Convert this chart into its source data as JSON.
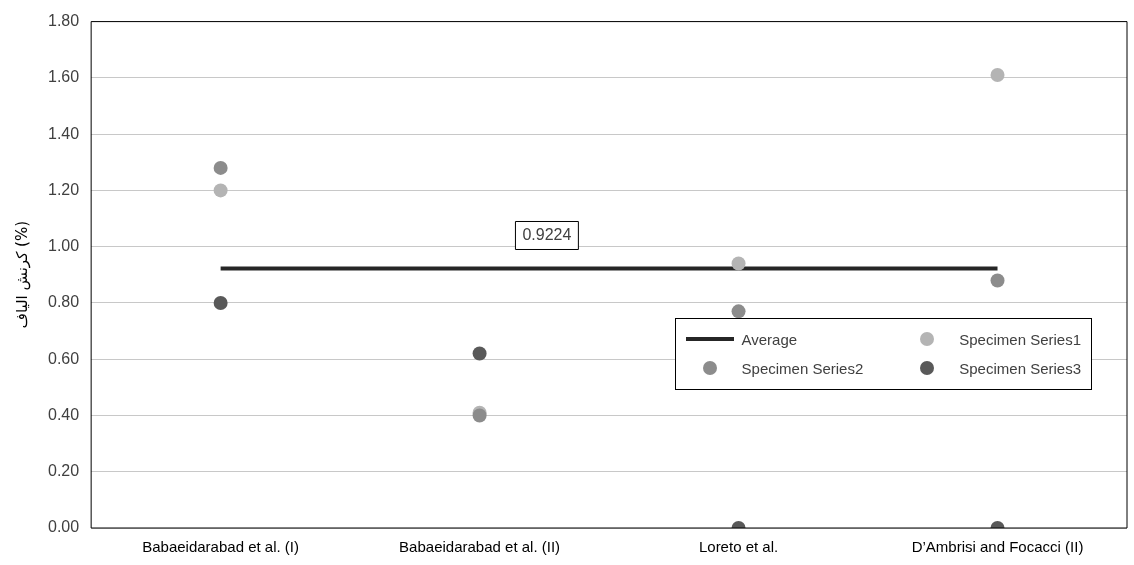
{
  "chart_data": {
    "type": "scatter",
    "ylabel": "کرنش الیاف (%)",
    "categories": [
      "Babaeidarabad et al. (I)",
      "Babaeidarabad et al. (II)",
      "Loreto et al.",
      "D’Ambrisi and Focacci (II)"
    ],
    "series": [
      {
        "name": "Average",
        "type": "line",
        "color": "#262626",
        "values": [
          0.9224,
          0.9224,
          0.9224,
          0.9224
        ],
        "marker": "none"
      },
      {
        "name": "Specimen Series1",
        "color": "#b4b4b4",
        "values": [
          1.2,
          0.41,
          0.94,
          1.61
        ]
      },
      {
        "name": "Specimen Series2",
        "color": "#8c8c8c",
        "values": [
          1.28,
          0.4,
          0.77,
          0.88
        ]
      },
      {
        "name": "Specimen Series3",
        "color": "#595959",
        "values": [
          0.8,
          0.62,
          0,
          0
        ]
      }
    ],
    "annotations": [
      {
        "text": "0.9224",
        "y": 0.9224
      }
    ],
    "ylim": [
      0,
      1.8
    ],
    "yticks": [
      {
        "value": 0,
        "label": "0.00"
      },
      {
        "value": 0.2,
        "label": "0.20"
      },
      {
        "value": 0.4,
        "label": "0.40"
      },
      {
        "value": 0.6,
        "label": "0.60"
      },
      {
        "value": 0.8,
        "label": "0.80"
      },
      {
        "value": 1,
        "label": "1.00"
      },
      {
        "value": 1.2,
        "label": "1.20"
      },
      {
        "value": 1.4,
        "label": "1.40"
      },
      {
        "value": 1.6,
        "label": "1.60"
      },
      {
        "value": 1.8,
        "label": "1.80"
      }
    ],
    "grid": "y",
    "legend": "bottom right",
    "marker": "circle"
  }
}
